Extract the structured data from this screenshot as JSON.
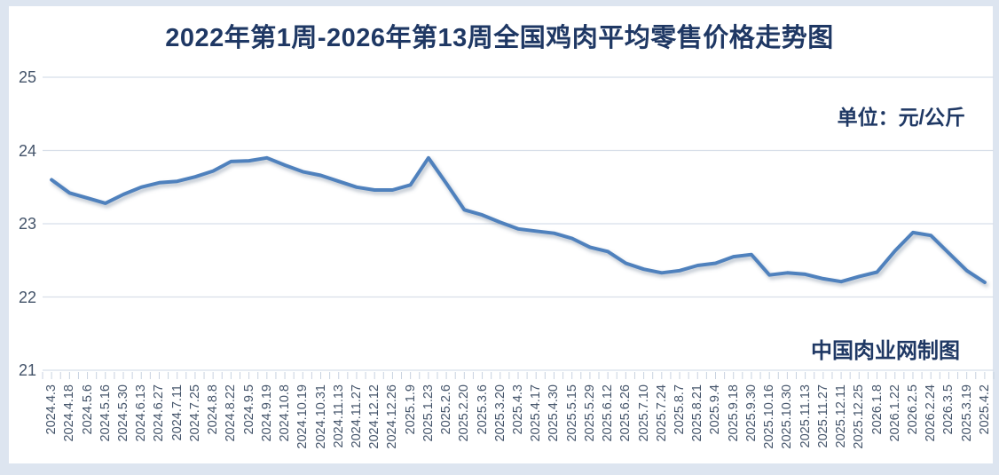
{
  "title": "2022年第1周-2026年第13周全国鸡肉平均零售价格走势图",
  "unit_label": "单位：元/公斤",
  "source_label": "中国肉业网制图",
  "colors": {
    "title_text": "#1f3864",
    "axis_text": "#44546a",
    "gridline": "#d8dfe9",
    "tick": "#c8d2e0",
    "series_line": "#4f81bd",
    "frame_border": "#dde5f0",
    "background": "#ffffff"
  },
  "chart_data": {
    "type": "line",
    "title": "2022年第1周-2026年第13周全国鸡肉平均零售价格走势图",
    "unit": "元/公斤",
    "source": "中国肉业网制图",
    "xlabel": "",
    "ylabel": "",
    "ylim": [
      21,
      25
    ],
    "y_ticks": [
      25,
      24,
      23,
      22,
      21
    ],
    "grid": "horizontal",
    "legend": "none",
    "categories": [
      "2024.4.3",
      "2024.4.18",
      "2024.5.6",
      "2024.5.16",
      "2024.5.30",
      "2024.6.13",
      "2024.6.27",
      "2024.7.11",
      "2024.7.25",
      "2024.8.8",
      "2024.8.22",
      "2024.9.5",
      "2024.9.19",
      "2024.10.8",
      "2024.10.19",
      "2024.10.31",
      "2024.11.13",
      "2024.11.27",
      "2024.12.12",
      "2024.12.26",
      "2025.1.9",
      "2025.1.23",
      "2025.2.6",
      "2025.2.20",
      "2025.3.6",
      "2025.3.20",
      "2025.4.3",
      "2025.4.17",
      "2025.4.30",
      "2025.5.15",
      "2025.5.29",
      "2025.6.12",
      "2025.6.26",
      "2025.7.10",
      "2025.7.24",
      "2025.8.7",
      "2025.8.21",
      "2025.9.4",
      "2025.9.18",
      "2025.9.30",
      "2025.10.16",
      "2025.10.30",
      "2025.11.13",
      "2025.11.27",
      "2025.12.11",
      "2025.12.25",
      "2026.1.8",
      "2026.1.22",
      "2026.2.5",
      "2026.2.24",
      "2026.3.5",
      "2025.3.19",
      "2025.4.2"
    ],
    "values": [
      23.6,
      23.42,
      23.35,
      23.28,
      23.4,
      23.5,
      23.56,
      23.58,
      23.64,
      23.72,
      23.85,
      23.86,
      23.9,
      23.8,
      23.71,
      23.66,
      23.58,
      23.5,
      23.46,
      23.46,
      23.53,
      23.9,
      23.55,
      23.19,
      23.12,
      23.02,
      22.93,
      22.9,
      22.87,
      22.8,
      22.68,
      22.62,
      22.46,
      22.38,
      22.33,
      22.36,
      22.43,
      22.46,
      22.55,
      22.58,
      22.3,
      22.33,
      22.31,
      22.25,
      22.21,
      22.28,
      22.34,
      22.63,
      22.88,
      22.84,
      22.6,
      22.36,
      22.2
    ]
  }
}
